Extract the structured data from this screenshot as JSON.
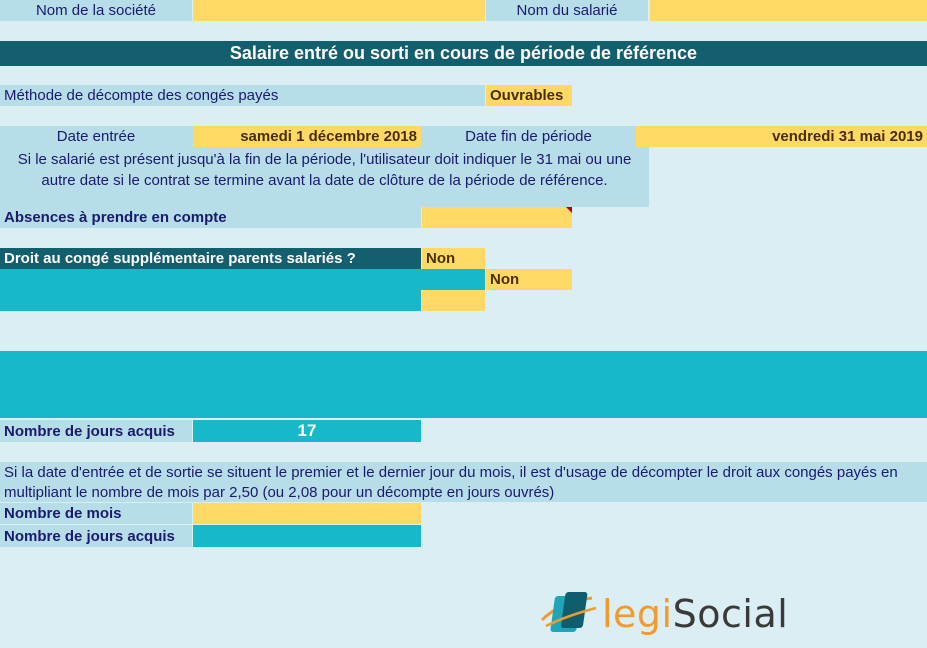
{
  "header": {
    "company_label": "Nom de la société",
    "company_value": "",
    "employee_label": "Nom du salarié",
    "employee_value": ""
  },
  "title": "Salaire entré ou sorti en cours de période de référence",
  "method": {
    "label": "Méthode de décompte des congés payés",
    "value": "Ouvrables"
  },
  "dates": {
    "entry_label": "Date entrée",
    "entry_value": "samedi 1 décembre 2018",
    "end_label": "Date fin de période",
    "end_value": "vendredi 31 mai 2019",
    "note": "Si le salarié est présent jusqu'à la fin de la période, l'utilisateur doit indiquer le 31 mai ou une autre date si le contrat se termine avant la date de clôture de la période de référence."
  },
  "absences": {
    "label": "Absences à prendre en compte",
    "value": ""
  },
  "parents": {
    "label": "Droit au congé supplémentaire parents salariés ?",
    "value": "Non",
    "sub_value": "Non"
  },
  "result": {
    "label": "Nombre de jours acquis",
    "value": "17"
  },
  "info": {
    "text": "Si la date d'entrée et de sortie se situent le premier et le dernier jour du mois, il est d'usage de décompter le droit aux congés payés en multipliant le nombre de mois par 2,50 (ou 2,08 pour un décompte en jours ouvrés)"
  },
  "months": {
    "label": "Nombre de mois",
    "value": ""
  },
  "days2": {
    "label": "Nombre de jours acquis",
    "value": ""
  },
  "logo": {
    "part1": "legi",
    "part2": "Social",
    "colors": {
      "orange": "#f29a2e",
      "dark": "#3a3a3a",
      "teal": "#1fa5b8"
    }
  }
}
